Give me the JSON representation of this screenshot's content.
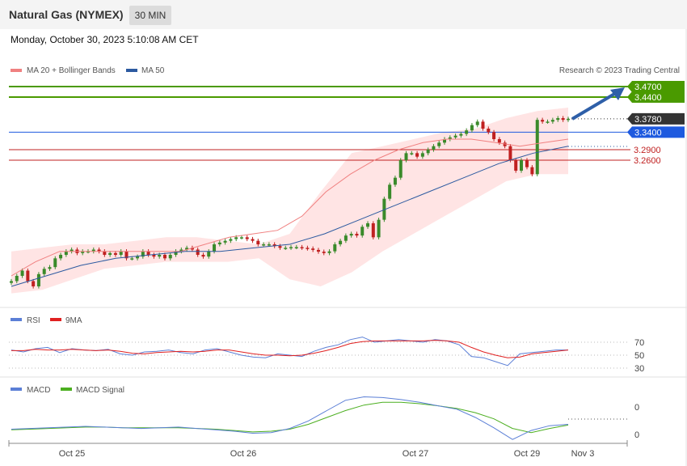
{
  "header": {
    "title": "Natural Gas (NYMEX)",
    "interval": "30 MIN"
  },
  "timestamp": "Monday, October 30, 2023 5:10:08 AM CET",
  "credit": "Research © 2023 Trading Central",
  "legend": {
    "price": [
      {
        "label": "MA 20 + Bollinger Bands",
        "color": "#f08080"
      },
      {
        "label": "MA 50",
        "color": "#2c5aa0"
      }
    ],
    "rsi": [
      {
        "label": "RSI",
        "color": "#5b7fd6"
      },
      {
        "label": "9MA",
        "color": "#e02020"
      }
    ],
    "macd": [
      {
        "label": "MACD",
        "color": "#5b7fd6"
      },
      {
        "label": "MACD Signal",
        "color": "#4caf20"
      }
    ]
  },
  "colors": {
    "up": "#3a8a2a",
    "down": "#c02020",
    "target": "#4a9a00",
    "pivot": "#1e5adf",
    "support": "#c02020",
    "last": "#333333",
    "band_fill": "#ffe4e4",
    "arrow": "#2e5fa8"
  },
  "chart_data": [
    {
      "type": "candlestick",
      "title": "Natural Gas (NYMEX)",
      "interval": "30 MIN",
      "x_ticks": [
        "Oct 25",
        "Oct 26",
        "Oct 27",
        "Oct 29",
        "Nov 3"
      ],
      "ylim": [
        2.8,
        3.5
      ],
      "levels": [
        {
          "value": 3.47,
          "label": "3.4700",
          "role": "target"
        },
        {
          "value": 3.44,
          "label": "3.4400",
          "role": "target"
        },
        {
          "value": 3.378,
          "label": "3.3780",
          "role": "last"
        },
        {
          "value": 3.34,
          "label": "3.3400",
          "role": "pivot"
        },
        {
          "value": 3.29,
          "label": "3.2900",
          "role": "support"
        },
        {
          "value": 3.26,
          "label": "3.2600",
          "role": "support"
        }
      ],
      "series": [
        {
          "name": "Price (close, approx.)",
          "values": [
            2.915,
            2.93,
            2.945,
            2.915,
            2.9,
            2.935,
            2.95,
            2.955,
            2.98,
            2.99,
            3.0,
            3.005,
            2.995,
            3.0,
            3.0,
            3.005,
            3.0,
            2.99,
            2.995,
            2.99,
            3.0,
            2.98,
            2.98,
            2.985,
            3.0,
            2.99,
            2.985,
            2.99,
            2.98,
            2.99,
            3.0,
            3.005,
            3.01,
            3.005,
            2.99,
            2.985,
            3.0,
            3.02,
            3.025,
            3.03,
            3.035,
            3.04,
            3.04,
            3.035,
            3.03,
            3.02,
            3.02,
            3.02,
            3.015,
            3.01,
            3.01,
            3.012,
            3.012,
            3.01,
            3.008,
            3.004,
            2.999,
            2.995,
            3.0,
            3.02,
            3.03,
            3.045,
            3.05,
            3.045,
            3.07,
            3.08,
            3.04,
            3.09,
            3.15,
            3.19,
            3.21,
            3.26,
            3.28,
            3.28,
            3.27,
            3.28,
            3.29,
            3.3,
            3.31,
            3.32,
            3.325,
            3.33,
            3.335,
            3.345,
            3.36,
            3.37,
            3.35,
            3.34,
            3.32,
            3.31,
            3.3,
            3.26,
            3.23,
            3.26,
            3.24,
            3.22,
            3.375,
            3.37,
            3.37,
            3.375,
            3.38,
            3.375,
            3.378
          ]
        },
        {
          "name": "MA 20",
          "values": [
            2.93,
            2.97,
            3.0,
            3.0,
            3.0,
            3.0,
            3.0,
            3.0,
            3.02,
            3.04,
            3.05,
            3.06,
            3.1,
            3.17,
            3.22,
            3.26,
            3.29,
            3.31,
            3.32,
            3.32,
            3.31,
            3.3,
            3.31,
            3.32
          ]
        },
        {
          "name": "MA 50",
          "values": [
            2.9,
            2.93,
            2.96,
            2.98,
            2.99,
            3.0,
            3.0,
            3.01,
            3.02,
            3.05,
            3.09,
            3.13,
            3.17,
            3.21,
            3.25,
            3.28,
            3.3
          ]
        },
        {
          "name": "Bollinger Upper",
          "values": [
            3.0,
            3.01,
            3.02,
            3.02,
            3.03,
            3.04,
            3.04,
            3.03,
            3.02,
            3.05,
            3.17,
            3.28,
            3.3,
            3.32,
            3.34,
            3.35,
            3.38,
            3.4,
            3.41
          ]
        },
        {
          "name": "Bollinger Lower",
          "values": [
            2.88,
            2.89,
            2.92,
            2.95,
            2.96,
            2.97,
            2.97,
            2.97,
            2.98,
            2.92,
            2.9,
            2.94,
            3.0,
            3.05,
            3.1,
            3.15,
            3.2,
            3.22,
            3.22
          ]
        }
      ]
    },
    {
      "type": "line",
      "title": "RSI",
      "y_ticks": [
        70,
        50,
        30
      ],
      "series": [
        {
          "name": "RSI",
          "values": [
            58,
            55,
            60,
            62,
            54,
            60,
            58,
            57,
            59,
            52,
            50,
            55,
            56,
            58,
            54,
            52,
            58,
            60,
            55,
            50,
            47,
            46,
            52,
            50,
            48,
            56,
            62,
            66,
            74,
            78,
            70,
            72,
            74,
            72,
            70,
            74,
            72,
            66,
            48,
            46,
            40,
            34,
            52,
            54,
            56,
            58,
            58
          ]
        },
        {
          "name": "9MA",
          "values": [
            57,
            57,
            59,
            58,
            58,
            59,
            58,
            57,
            58,
            56,
            53,
            52,
            54,
            55,
            56,
            55,
            56,
            58,
            58,
            55,
            52,
            50,
            50,
            49,
            50,
            53,
            57,
            62,
            68,
            71,
            72,
            72,
            72,
            72,
            72,
            73,
            72,
            70,
            62,
            55,
            50,
            46,
            47,
            52,
            54,
            56,
            58
          ]
        }
      ]
    },
    {
      "type": "line",
      "title": "MACD",
      "y_ticks": [
        0,
        0
      ],
      "series": [
        {
          "name": "MACD",
          "values": [
            0.003,
            0.004,
            0.005,
            0.006,
            0.007,
            0.006,
            0.005,
            0.004,
            0.005,
            0.006,
            0.004,
            0.002,
            0.0,
            -0.003,
            -0.002,
            0.004,
            0.015,
            0.03,
            0.045,
            0.05,
            0.049,
            0.046,
            0.042,
            0.037,
            0.032,
            0.02,
            0.005,
            -0.012,
            0.001,
            0.008,
            0.01
          ]
        },
        {
          "name": "MACD Signal",
          "values": [
            0.002,
            0.003,
            0.004,
            0.005,
            0.006,
            0.006,
            0.005,
            0.005,
            0.005,
            0.005,
            0.004,
            0.003,
            0.001,
            -0.001,
            0.0,
            0.003,
            0.01,
            0.02,
            0.03,
            0.038,
            0.042,
            0.042,
            0.04,
            0.037,
            0.033,
            0.027,
            0.018,
            0.004,
            -0.002,
            0.004,
            0.009
          ]
        }
      ]
    }
  ]
}
